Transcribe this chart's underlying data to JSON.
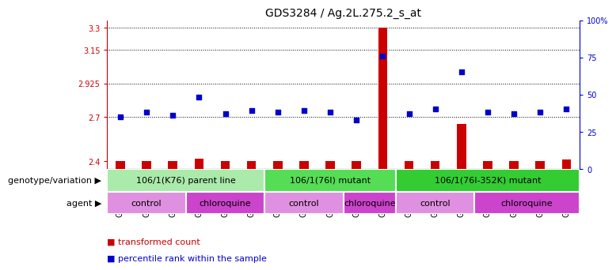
{
  "title": "GDS3284 / Ag.2L.275.2_s_at",
  "samples": [
    "GSM253220",
    "GSM253221",
    "GSM253222",
    "GSM253223",
    "GSM253224",
    "GSM253225",
    "GSM253226",
    "GSM253227",
    "GSM253228",
    "GSM253229",
    "GSM253230",
    "GSM253231",
    "GSM253232",
    "GSM253233",
    "GSM253234",
    "GSM253235",
    "GSM253236",
    "GSM253237"
  ],
  "transformed_count": [
    2.4,
    2.4,
    2.4,
    2.42,
    2.4,
    2.4,
    2.4,
    2.4,
    2.4,
    2.4,
    3.3,
    2.4,
    2.4,
    2.65,
    2.4,
    2.4,
    2.4,
    2.41
  ],
  "percentile_rank": [
    35,
    38,
    36,
    48,
    37,
    39,
    38,
    39,
    38,
    33,
    76,
    37,
    40,
    65,
    38,
    37,
    38,
    40
  ],
  "ylim_left": [
    2.35,
    3.35
  ],
  "ylim_right": [
    0,
    100
  ],
  "yticks_left": [
    2.4,
    2.7,
    2.925,
    3.15,
    3.3
  ],
  "ytick_labels_left": [
    "2.4",
    "2.7",
    "2.925",
    "3.15",
    "3.3"
  ],
  "yticks_right": [
    0,
    25,
    50,
    75,
    100
  ],
  "ytick_labels_right": [
    "0",
    "25",
    "50",
    "75",
    "100%"
  ],
  "hlines": [
    2.7,
    2.925,
    3.15,
    3.3
  ],
  "bar_color": "#cc0000",
  "dot_color": "#0000cc",
  "bar_width": 0.35,
  "dot_size": 22,
  "genotype_groups": [
    {
      "label": "106/1(K76) parent line",
      "start": 0,
      "end": 6,
      "color": "#aaeaaa"
    },
    {
      "label": "106/1(76I) mutant",
      "start": 6,
      "end": 11,
      "color": "#55dd55"
    },
    {
      "label": "106/1(76I-352K) mutant",
      "start": 11,
      "end": 18,
      "color": "#33cc33"
    }
  ],
  "agent_groups": [
    {
      "label": "control",
      "start": 0,
      "end": 3,
      "color": "#e090e0"
    },
    {
      "label": "chloroquine",
      "start": 3,
      "end": 6,
      "color": "#cc44cc"
    },
    {
      "label": "control",
      "start": 6,
      "end": 9,
      "color": "#e090e0"
    },
    {
      "label": "chloroquine",
      "start": 9,
      "end": 11,
      "color": "#cc44cc"
    },
    {
      "label": "control",
      "start": 11,
      "end": 14,
      "color": "#e090e0"
    },
    {
      "label": "chloroquine",
      "start": 14,
      "end": 18,
      "color": "#cc44cc"
    }
  ],
  "legend_items": [
    {
      "label": "transformed count",
      "color": "#cc0000"
    },
    {
      "label": "percentile rank within the sample",
      "color": "#0000cc"
    }
  ],
  "bar_color_hex": "#cc0000",
  "dot_color_hex": "#0000cc",
  "title_fontsize": 10,
  "tick_fontsize": 7,
  "label_fontsize": 8,
  "annot_fontsize": 8,
  "genotype_label": "genotype/variation",
  "agent_label": "agent",
  "xtick_bg_color": "#cccccc",
  "left_axis_color": "#cc0000",
  "right_axis_color": "#0000cc"
}
